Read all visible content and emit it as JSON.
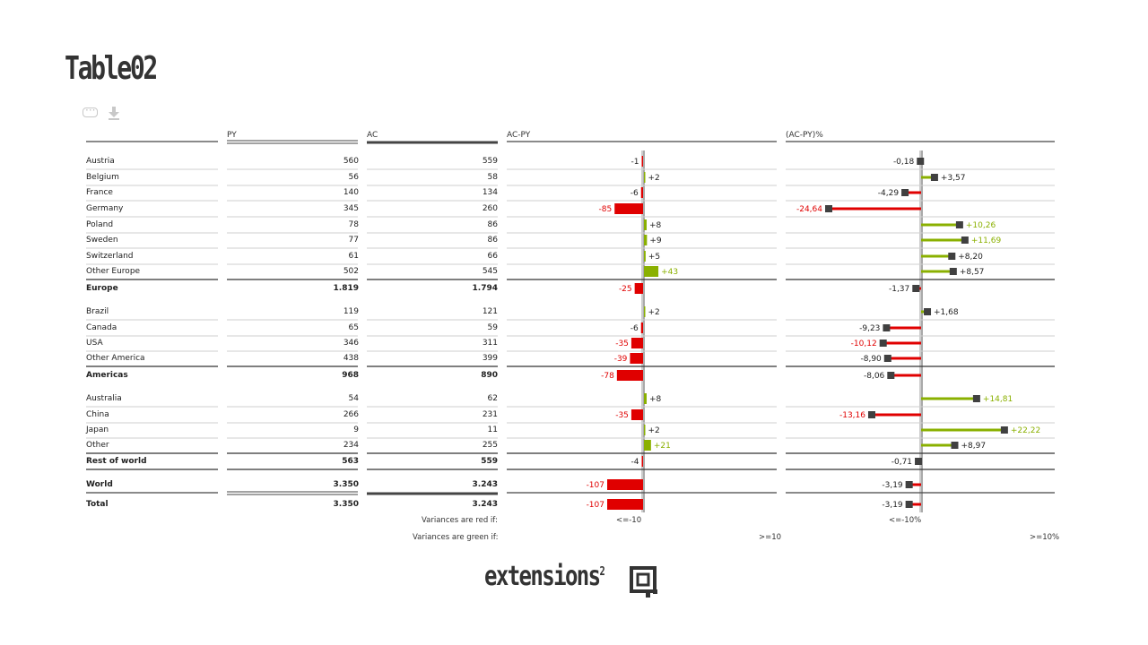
{
  "page": {
    "title": "Table02"
  },
  "colors": {
    "negative": "#e00000",
    "positive": "#8ab000",
    "marker": "#404040",
    "axis": "#888888"
  },
  "columns": {
    "py": "PY",
    "ac": "AC",
    "abs": "AC-PY",
    "rel": "(AC-PY)%"
  },
  "rows": [
    {
      "name": "Austria",
      "py": "560",
      "ac": "559",
      "abs": -1,
      "abs_text": "-1",
      "rel": -0.18,
      "rel_text": "-0,18",
      "type": "item"
    },
    {
      "name": "Belgium",
      "py": "56",
      "ac": "58",
      "abs": 2,
      "abs_text": "+2",
      "rel": 3.57,
      "rel_text": "+3,57",
      "type": "item"
    },
    {
      "name": "France",
      "py": "140",
      "ac": "134",
      "abs": -6,
      "abs_text": "-6",
      "rel": -4.29,
      "rel_text": "-4,29",
      "type": "item"
    },
    {
      "name": "Germany",
      "py": "345",
      "ac": "260",
      "abs": -85,
      "abs_text": "-85",
      "rel": -24.64,
      "rel_text": "-24,64",
      "type": "item"
    },
    {
      "name": "Poland",
      "py": "78",
      "ac": "86",
      "abs": 8,
      "abs_text": "+8",
      "rel": 10.26,
      "rel_text": "+10,26",
      "type": "item"
    },
    {
      "name": "Sweden",
      "py": "77",
      "ac": "86",
      "abs": 9,
      "abs_text": "+9",
      "rel": 11.69,
      "rel_text": "+11,69",
      "type": "item"
    },
    {
      "name": "Switzerland",
      "py": "61",
      "ac": "66",
      "abs": 5,
      "abs_text": "+5",
      "rel": 8.2,
      "rel_text": "+8,20",
      "type": "item"
    },
    {
      "name": "Other Europe",
      "py": "502",
      "ac": "545",
      "abs": 43,
      "abs_text": "+43",
      "rel": 8.57,
      "rel_text": "+8,57",
      "type": "item"
    },
    {
      "name": "Europe",
      "py": "1.819",
      "ac": "1.794",
      "abs": -25,
      "abs_text": "-25",
      "rel": -1.37,
      "rel_text": "-1,37",
      "type": "subtotal"
    },
    {
      "name": "Brazil",
      "py": "119",
      "ac": "121",
      "abs": 2,
      "abs_text": "+2",
      "rel": 1.68,
      "rel_text": "+1,68",
      "type": "item"
    },
    {
      "name": "Canada",
      "py": "65",
      "ac": "59",
      "abs": -6,
      "abs_text": "-6",
      "rel": -9.23,
      "rel_text": "-9,23",
      "type": "item"
    },
    {
      "name": "USA",
      "py": "346",
      "ac": "311",
      "abs": -35,
      "abs_text": "-35",
      "rel": -10.12,
      "rel_text": "-10,12",
      "type": "item"
    },
    {
      "name": "Other America",
      "py": "438",
      "ac": "399",
      "abs": -39,
      "abs_text": "-39",
      "rel": -8.9,
      "rel_text": "-8,90",
      "type": "item"
    },
    {
      "name": "Americas",
      "py": "968",
      "ac": "890",
      "abs": -78,
      "abs_text": "-78",
      "rel": -8.06,
      "rel_text": "-8,06",
      "type": "subtotal"
    },
    {
      "name": "Australia",
      "py": "54",
      "ac": "62",
      "abs": 8,
      "abs_text": "+8",
      "rel": 14.81,
      "rel_text": "+14,81",
      "type": "item"
    },
    {
      "name": "China",
      "py": "266",
      "ac": "231",
      "abs": -35,
      "abs_text": "-35",
      "rel": -13.16,
      "rel_text": "-13,16",
      "type": "item"
    },
    {
      "name": "Japan",
      "py": "9",
      "ac": "11",
      "abs": 2,
      "abs_text": "+2",
      "rel": 22.22,
      "rel_text": "+22,22",
      "type": "item"
    },
    {
      "name": "Other",
      "py": "234",
      "ac": "255",
      "abs": 21,
      "abs_text": "+21",
      "rel": 8.97,
      "rel_text": "+8,97",
      "type": "item"
    },
    {
      "name": "Rest of world",
      "py": "563",
      "ac": "559",
      "abs": -4,
      "abs_text": "-4",
      "rel": -0.71,
      "rel_text": "-0,71",
      "type": "subtotal"
    },
    {
      "name": "World",
      "py": "3.350",
      "ac": "3.243",
      "abs": -107,
      "abs_text": "-107",
      "rel": -3.19,
      "rel_text": "-3,19",
      "type": "subtotal"
    },
    {
      "name": "Total",
      "py": "3.350",
      "ac": "3.243",
      "abs": -107,
      "abs_text": "-107",
      "rel": -3.19,
      "rel_text": "-3,19",
      "type": "total"
    }
  ],
  "legend": {
    "red_label": "Variances are red if:",
    "green_label": "Variances are green if:",
    "abs_red": "<=-10",
    "abs_green": ">=10",
    "rel_red": "<=-10%",
    "rel_green": ">=10%"
  },
  "logo": {
    "text": "extensions",
    "sup": "2"
  },
  "icons": {
    "comment": "comment-icon",
    "download": "download-icon"
  }
}
